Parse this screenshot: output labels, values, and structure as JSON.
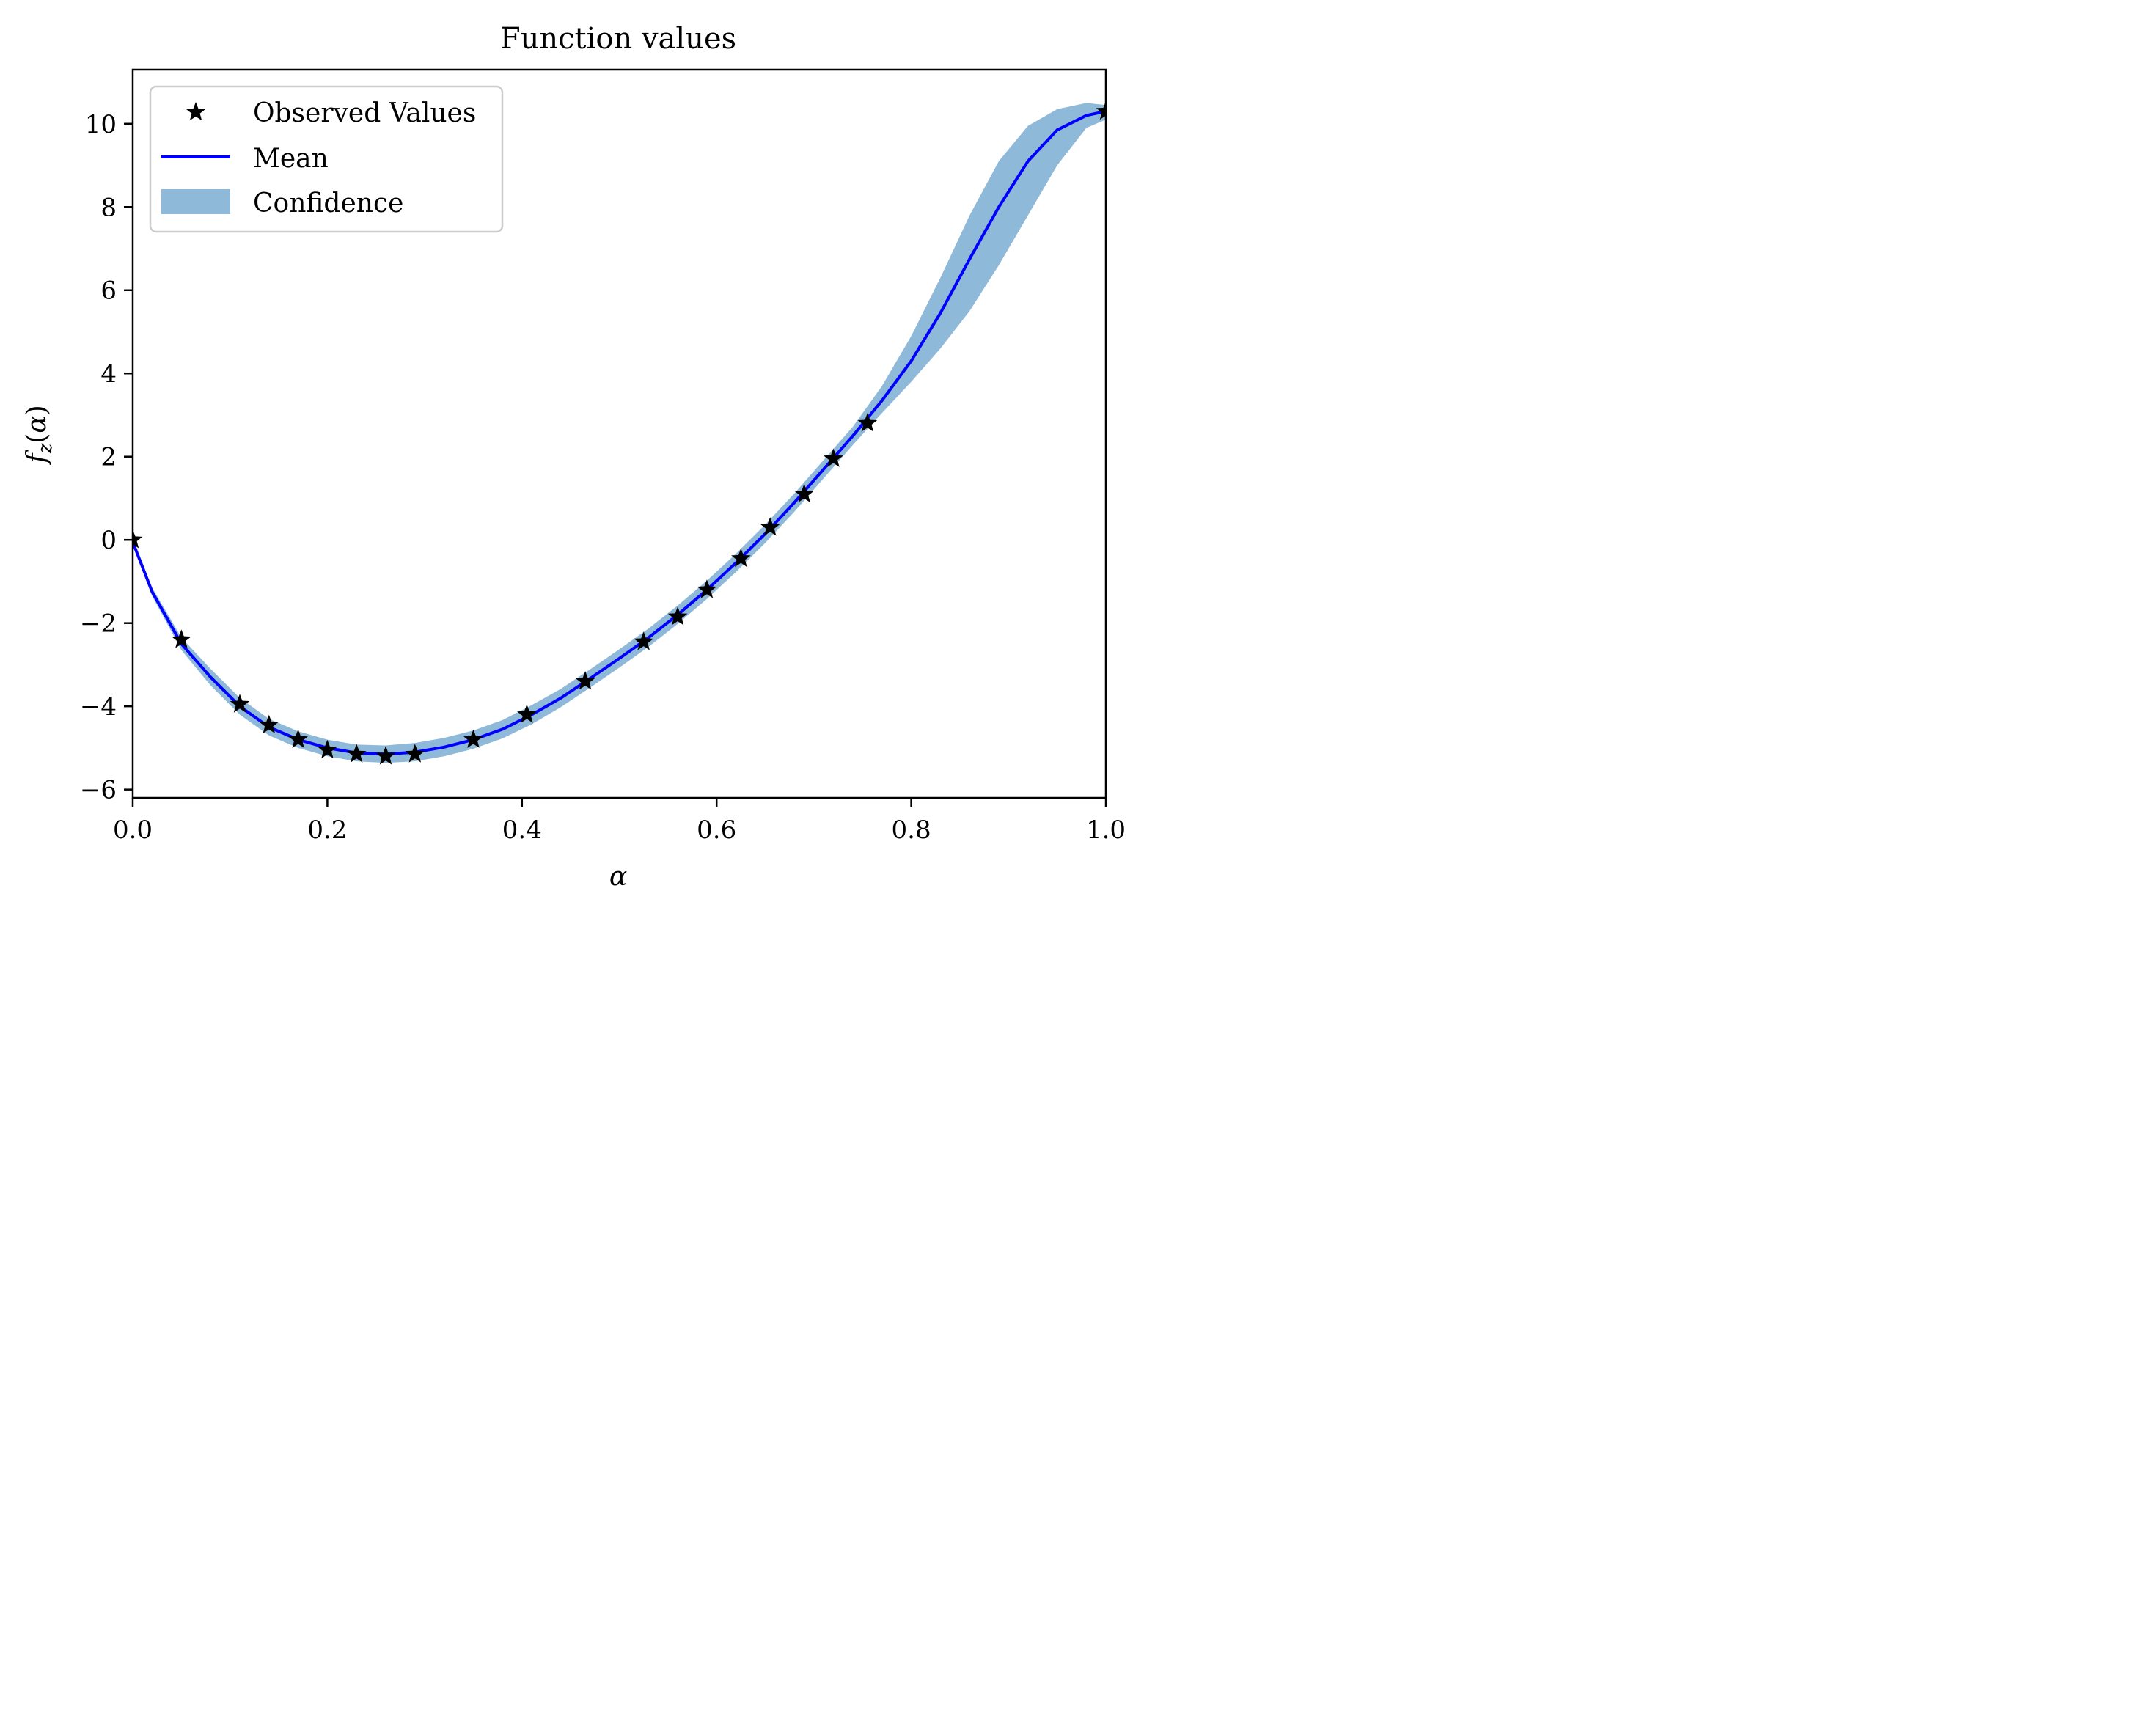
{
  "chart_data": {
    "type": "line",
    "title": "Function values",
    "xlabel": "α",
    "ylabel": "f_z(α)",
    "xlim": [
      0.0,
      1.0
    ],
    "ylim": [
      -6.2,
      11.3
    ],
    "x_ticks": [
      "0.0",
      "0.2",
      "0.4",
      "0.6",
      "0.8",
      "1.0"
    ],
    "x_tick_values": [
      0.0,
      0.2,
      0.4,
      0.6,
      0.8,
      1.0
    ],
    "y_ticks": [
      "−6",
      "−4",
      "−2",
      "0",
      "2",
      "4",
      "6",
      "8",
      "10"
    ],
    "y_tick_values": [
      -6,
      -4,
      -2,
      0,
      2,
      4,
      6,
      8,
      10
    ],
    "grid": false,
    "legend_position": "top-left",
    "legend": [
      "Observed Values",
      "Mean",
      "Confidence"
    ],
    "colors": {
      "observed": "#000000",
      "mean": "#0000ff",
      "confidence": "#8fb9d9"
    },
    "series": [
      {
        "name": "Observed Values",
        "marker": "star",
        "x": [
          0.0,
          0.05,
          0.11,
          0.14,
          0.17,
          0.2,
          0.23,
          0.26,
          0.29,
          0.35,
          0.405,
          0.465,
          0.525,
          0.56,
          0.59,
          0.625,
          0.655,
          0.69,
          0.72,
          0.755,
          1.0
        ],
        "y": [
          0.0,
          -2.4,
          -3.95,
          -4.45,
          -4.8,
          -5.05,
          -5.15,
          -5.2,
          -5.15,
          -4.8,
          -4.2,
          -3.4,
          -2.45,
          -1.85,
          -1.2,
          -0.45,
          0.3,
          1.1,
          1.95,
          2.8,
          10.3
        ]
      },
      {
        "name": "Mean",
        "x": [
          0.0,
          0.02,
          0.05,
          0.08,
          0.11,
          0.14,
          0.17,
          0.2,
          0.23,
          0.26,
          0.29,
          0.32,
          0.35,
          0.38,
          0.41,
          0.44,
          0.47,
          0.5,
          0.53,
          0.56,
          0.59,
          0.62,
          0.65,
          0.68,
          0.71,
          0.74,
          0.77,
          0.8,
          0.83,
          0.86,
          0.89,
          0.92,
          0.95,
          0.98,
          1.0
        ],
        "y": [
          -0.05,
          -1.25,
          -2.5,
          -3.3,
          -4.0,
          -4.5,
          -4.8,
          -5.0,
          -5.12,
          -5.15,
          -5.1,
          -4.98,
          -4.8,
          -4.55,
          -4.2,
          -3.8,
          -3.33,
          -2.85,
          -2.35,
          -1.8,
          -1.2,
          -0.55,
          0.15,
          0.9,
          1.7,
          2.5,
          3.35,
          4.3,
          5.45,
          6.75,
          8.0,
          9.1,
          9.85,
          10.2,
          10.3
        ]
      }
    ],
    "confidence": {
      "name": "Confidence",
      "x": [
        0.0,
        0.02,
        0.05,
        0.08,
        0.11,
        0.14,
        0.17,
        0.2,
        0.23,
        0.26,
        0.29,
        0.32,
        0.35,
        0.38,
        0.41,
        0.44,
        0.47,
        0.5,
        0.53,
        0.56,
        0.59,
        0.62,
        0.65,
        0.68,
        0.71,
        0.74,
        0.77,
        0.8,
        0.83,
        0.86,
        0.89,
        0.92,
        0.95,
        0.98,
        1.0
      ],
      "lower": [
        -0.1,
        -1.35,
        -2.65,
        -3.5,
        -4.2,
        -4.7,
        -5.0,
        -5.2,
        -5.32,
        -5.36,
        -5.32,
        -5.2,
        -5.02,
        -4.77,
        -4.43,
        -4.02,
        -3.55,
        -3.07,
        -2.57,
        -2.02,
        -1.42,
        -0.77,
        -0.07,
        0.68,
        1.48,
        2.28,
        3.05,
        3.8,
        4.6,
        5.5,
        6.6,
        7.8,
        9.0,
        9.9,
        10.1
      ],
      "upper": [
        0.0,
        -1.15,
        -2.35,
        -3.1,
        -3.8,
        -4.3,
        -4.6,
        -4.8,
        -4.92,
        -4.94,
        -4.88,
        -4.76,
        -4.58,
        -4.33,
        -3.97,
        -3.58,
        -3.11,
        -2.63,
        -2.13,
        -1.58,
        -0.98,
        -0.33,
        0.37,
        1.12,
        1.92,
        2.72,
        3.7,
        4.9,
        6.3,
        7.8,
        9.1,
        9.95,
        10.35,
        10.5,
        10.45
      ]
    }
  }
}
